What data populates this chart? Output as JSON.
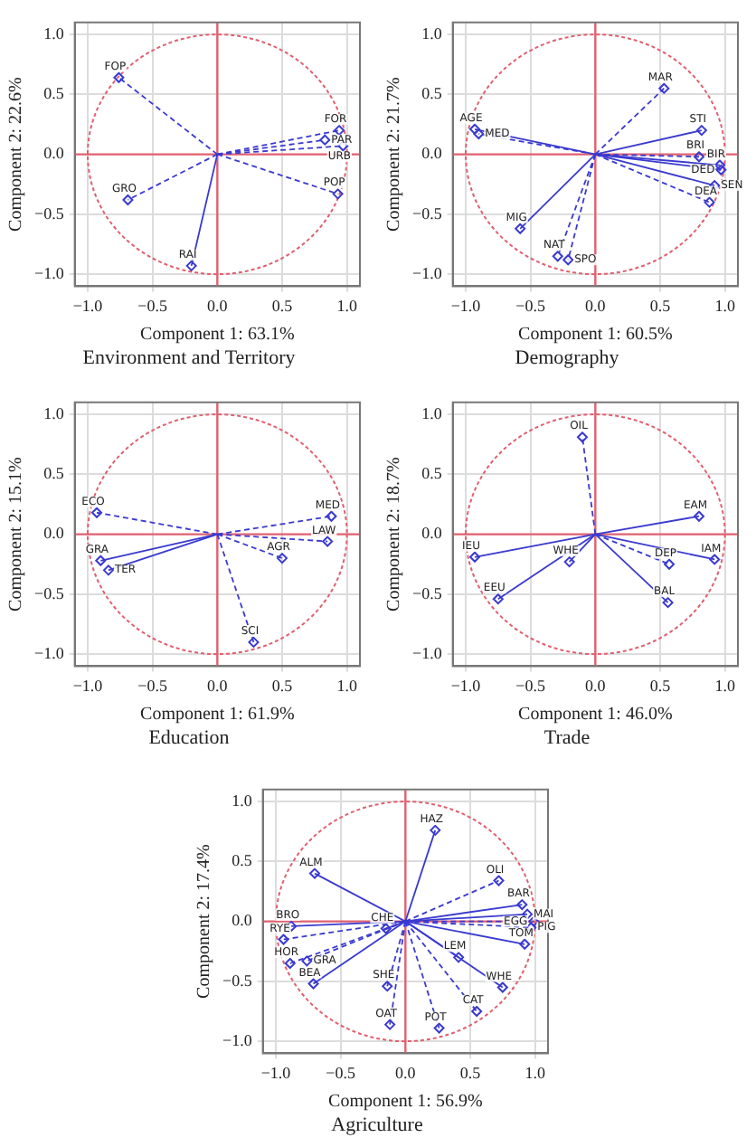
{
  "chart_data": [
    {
      "type": "scatter",
      "title": "Environment and Territory",
      "xlabel": "Component 1: 63.1%",
      "ylabel": "Component 2: 22.6%",
      "xlim": [
        -1.1,
        1.1
      ],
      "ylim": [
        -1.1,
        1.1
      ],
      "xticks": [
        {
          "value": -1,
          "label": "−1.0"
        },
        {
          "value": -0.5,
          "label": "−0.5"
        },
        {
          "value": 0,
          "label": "0.0"
        },
        {
          "value": 0.5,
          "label": "0.5"
        },
        {
          "value": 1,
          "label": "1.0"
        }
      ],
      "yticks": [
        {
          "value": -1,
          "label": "−1.0"
        },
        {
          "value": -0.5,
          "label": "−0.5"
        },
        {
          "value": 0,
          "label": "0.0"
        },
        {
          "value": 0.5,
          "label": "0.5"
        },
        {
          "value": 1,
          "label": "1.0"
        }
      ],
      "grid": true,
      "marker": "diamond",
      "series": [
        {
          "color": "#3a3ad0",
          "line_style": "solid",
          "x": [
            -0.2
          ],
          "values": [
            -0.93
          ]
        },
        {
          "color": "#3a3ad0",
          "line_style": "dashed",
          "x": [
            -0.76,
            0.94,
            0.83,
            0.97,
            0.93,
            -0.69
          ],
          "values": [
            0.64,
            0.2,
            0.12,
            0.07,
            -0.33,
            -0.38
          ]
        }
      ],
      "annotations": [
        {
          "text": "RAI",
          "x": -0.2,
          "y": -0.93
        },
        {
          "text": "FOP",
          "x": -0.76,
          "y": 0.64
        },
        {
          "text": "FOR",
          "x": 0.94,
          "y": 0.2
        },
        {
          "text": "PAR",
          "x": 0.83,
          "y": 0.12
        },
        {
          "text": "URB",
          "x": 0.97,
          "y": 0.07
        },
        {
          "text": "POP",
          "x": 0.93,
          "y": -0.33
        },
        {
          "text": "GRO",
          "x": -0.69,
          "y": -0.38
        }
      ]
    },
    {
      "type": "scatter",
      "title": "Demography",
      "xlabel": "Component 1: 60.5%",
      "ylabel": "Component 2: 21.7%",
      "xlim": [
        -1.1,
        1.1
      ],
      "ylim": [
        -1.1,
        1.1
      ],
      "xticks": [
        {
          "value": -1,
          "label": "−1.0"
        },
        {
          "value": -0.5,
          "label": "−0.5"
        },
        {
          "value": 0,
          "label": "0.0"
        },
        {
          "value": 0.5,
          "label": "0.5"
        },
        {
          "value": 1,
          "label": "1.0"
        }
      ],
      "yticks": [
        {
          "value": -1,
          "label": "−1.0"
        },
        {
          "value": -0.5,
          "label": "−0.5"
        },
        {
          "value": 0,
          "label": "0.0"
        },
        {
          "value": 0.5,
          "label": "0.5"
        },
        {
          "value": 1,
          "label": "1.0"
        }
      ],
      "grid": true,
      "marker": "diamond",
      "series": [
        {
          "color": "#3a3ad0",
          "line_style": "solid",
          "x": [
            -0.93,
            0.82,
            0.96,
            0.97,
            0.92,
            -0.58
          ],
          "values": [
            0.21,
            0.2,
            -0.09,
            -0.13,
            -0.26,
            -0.62
          ]
        },
        {
          "color": "#3a3ad0",
          "line_style": "dashed",
          "x": [
            -0.9,
            0.53,
            0.8,
            0.88,
            -0.29,
            -0.21
          ],
          "values": [
            0.17,
            0.55,
            -0.02,
            -0.4,
            -0.85,
            -0.88
          ]
        }
      ],
      "annotations": [
        {
          "text": "AGE",
          "x": -0.93,
          "y": 0.21
        },
        {
          "text": "STI",
          "x": 0.82,
          "y": 0.2
        },
        {
          "text": "BIR",
          "x": 0.96,
          "y": -0.09
        },
        {
          "text": "DED",
          "x": 0.97,
          "y": -0.13
        },
        {
          "text": "SEN",
          "x": 0.92,
          "y": -0.26
        },
        {
          "text": "MIG",
          "x": -0.58,
          "y": -0.62
        },
        {
          "text": "MED",
          "x": -0.9,
          "y": 0.17
        },
        {
          "text": "MAR",
          "x": 0.53,
          "y": 0.55
        },
        {
          "text": "BRI",
          "x": 0.8,
          "y": -0.02
        },
        {
          "text": "DEA",
          "x": 0.88,
          "y": -0.4
        },
        {
          "text": "NAT",
          "x": -0.29,
          "y": -0.85
        },
        {
          "text": "SPO",
          "x": -0.21,
          "y": -0.88
        }
      ]
    },
    {
      "type": "scatter",
      "title": "Education",
      "xlabel": "Component 1: 61.9%",
      "ylabel": "Component 2: 15.1%",
      "xlim": [
        -1.1,
        1.1
      ],
      "ylim": [
        -1.1,
        1.1
      ],
      "xticks": [
        {
          "value": -1,
          "label": "−1.0"
        },
        {
          "value": -0.5,
          "label": "−0.5"
        },
        {
          "value": 0,
          "label": "0.0"
        },
        {
          "value": 0.5,
          "label": "0.5"
        },
        {
          "value": 1,
          "label": "1.0"
        }
      ],
      "yticks": [
        {
          "value": -1,
          "label": "−1.0"
        },
        {
          "value": -0.5,
          "label": "−0.5"
        },
        {
          "value": 0,
          "label": "0.0"
        },
        {
          "value": 0.5,
          "label": "0.5"
        },
        {
          "value": 1,
          "label": "1.0"
        }
      ],
      "grid": true,
      "marker": "diamond",
      "series": [
        {
          "color": "#3a3ad0",
          "line_style": "solid",
          "x": [
            -0.9,
            -0.84
          ],
          "values": [
            -0.22,
            -0.3
          ]
        },
        {
          "color": "#3a3ad0",
          "line_style": "dashed",
          "x": [
            -0.93,
            0.88,
            0.85,
            0.5,
            0.28
          ],
          "values": [
            0.18,
            0.15,
            -0.06,
            -0.2,
            -0.9
          ]
        }
      ],
      "annotations": [
        {
          "text": "GRA",
          "x": -0.9,
          "y": -0.22
        },
        {
          "text": "TER",
          "x": -0.84,
          "y": -0.3
        },
        {
          "text": "ECO",
          "x": -0.93,
          "y": 0.18
        },
        {
          "text": "MED",
          "x": 0.88,
          "y": 0.15
        },
        {
          "text": "LAW",
          "x": 0.85,
          "y": -0.06
        },
        {
          "text": "AGR",
          "x": 0.5,
          "y": -0.2
        },
        {
          "text": "SCI",
          "x": 0.28,
          "y": -0.9
        }
      ]
    },
    {
      "type": "scatter",
      "title": "Trade",
      "xlabel": "Component 1: 46.0%",
      "ylabel": "Component 2: 18.7%",
      "xlim": [
        -1.1,
        1.1
      ],
      "ylim": [
        -1.1,
        1.1
      ],
      "xticks": [
        {
          "value": -1,
          "label": "−1.0"
        },
        {
          "value": -0.5,
          "label": "−0.5"
        },
        {
          "value": 0,
          "label": "0.0"
        },
        {
          "value": 0.5,
          "label": "0.5"
        },
        {
          "value": 1,
          "label": "1.0"
        }
      ],
      "yticks": [
        {
          "value": -1,
          "label": "−1.0"
        },
        {
          "value": -0.5,
          "label": "−0.5"
        },
        {
          "value": 0,
          "label": "0.0"
        },
        {
          "value": 0.5,
          "label": "0.5"
        },
        {
          "value": 1,
          "label": "1.0"
        }
      ],
      "grid": true,
      "marker": "diamond",
      "series": [
        {
          "color": "#3a3ad0",
          "line_style": "solid",
          "x": [
            0.8,
            0.92,
            -0.93,
            -0.2,
            -0.75,
            0.56
          ],
          "values": [
            0.15,
            -0.21,
            -0.19,
            -0.23,
            -0.54,
            -0.57
          ]
        },
        {
          "color": "#3a3ad0",
          "line_style": "dashed",
          "x": [
            -0.1,
            0.57
          ],
          "values": [
            0.81,
            -0.25
          ]
        }
      ],
      "annotations": [
        {
          "text": "EAM",
          "x": 0.8,
          "y": 0.15
        },
        {
          "text": "IAM",
          "x": 0.92,
          "y": -0.21
        },
        {
          "text": "IEU",
          "x": -0.93,
          "y": -0.19
        },
        {
          "text": "WHE",
          "x": -0.2,
          "y": -0.23
        },
        {
          "text": "EEU",
          "x": -0.75,
          "y": -0.54
        },
        {
          "text": "BAL",
          "x": 0.56,
          "y": -0.57
        },
        {
          "text": "OIL",
          "x": -0.1,
          "y": 0.81
        },
        {
          "text": "DEP",
          "x": 0.57,
          "y": -0.25
        }
      ]
    },
    {
      "type": "scatter",
      "title": "Agriculture",
      "xlabel": "Component 1: 56.9%",
      "ylabel": "Component 2: 17.4%",
      "xlim": [
        -1.1,
        1.1
      ],
      "ylim": [
        -1.1,
        1.1
      ],
      "xticks": [
        {
          "value": -1,
          "label": "−1.0"
        },
        {
          "value": -0.5,
          "label": "−0.5"
        },
        {
          "value": 0,
          "label": "0.0"
        },
        {
          "value": 0.5,
          "label": "0.5"
        },
        {
          "value": 1,
          "label": "1.0"
        }
      ],
      "yticks": [
        {
          "value": -1,
          "label": "−1.0"
        },
        {
          "value": -0.5,
          "label": "−0.5"
        },
        {
          "value": 0,
          "label": "0.0"
        },
        {
          "value": 0.5,
          "label": "0.5"
        },
        {
          "value": 1,
          "label": "1.0"
        }
      ],
      "grid": true,
      "marker": "diamond",
      "series": [
        {
          "color": "#3a3ad0",
          "line_style": "solid",
          "x": [
            0.23,
            -0.7,
            0.9,
            0.94,
            0.92,
            0.41,
            0.75,
            -0.15,
            -0.88,
            -0.71
          ],
          "values": [
            0.76,
            0.4,
            0.14,
            0.06,
            -0.19,
            -0.3,
            -0.55,
            -0.06,
            -0.04,
            -0.52
          ]
        },
        {
          "color": "#3a3ad0",
          "line_style": "dashed",
          "x": [
            0.72,
            0.99,
            0.97,
            0.55,
            0.26,
            -0.12,
            -0.14,
            -0.94,
            -0.89,
            -0.76
          ],
          "values": [
            0.34,
            0.0,
            -0.05,
            -0.75,
            -0.89,
            -0.86,
            -0.54,
            -0.15,
            -0.35,
            -0.33
          ]
        }
      ],
      "annotations": [
        {
          "text": "HAZ",
          "x": 0.23,
          "y": 0.76
        },
        {
          "text": "ALM",
          "x": -0.7,
          "y": 0.4
        },
        {
          "text": "BAR",
          "x": 0.9,
          "y": 0.14
        },
        {
          "text": "MAI",
          "x": 0.94,
          "y": 0.06
        },
        {
          "text": "TOM",
          "x": 0.92,
          "y": -0.19
        },
        {
          "text": "LEM",
          "x": 0.41,
          "y": -0.3
        },
        {
          "text": "WHE",
          "x": 0.75,
          "y": -0.55
        },
        {
          "text": "CHE",
          "x": -0.15,
          "y": -0.06
        },
        {
          "text": "BRO",
          "x": -0.88,
          "y": -0.04
        },
        {
          "text": "BEA",
          "x": -0.71,
          "y": -0.52
        },
        {
          "text": "OLI",
          "x": 0.72,
          "y": 0.34
        },
        {
          "text": "EGG",
          "x": 0.99,
          "y": 0.0
        },
        {
          "text": "PIG",
          "x": 0.97,
          "y": -0.05
        },
        {
          "text": "CAT",
          "x": 0.55,
          "y": -0.75
        },
        {
          "text": "POT",
          "x": 0.26,
          "y": -0.89
        },
        {
          "text": "OAT",
          "x": -0.12,
          "y": -0.86
        },
        {
          "text": "SHE",
          "x": -0.14,
          "y": -0.54
        },
        {
          "text": "RYE",
          "x": -0.94,
          "y": -0.15
        },
        {
          "text": "HOR",
          "x": -0.89,
          "y": -0.35
        },
        {
          "text": "GRA",
          "x": -0.76,
          "y": -0.33
        }
      ]
    }
  ]
}
